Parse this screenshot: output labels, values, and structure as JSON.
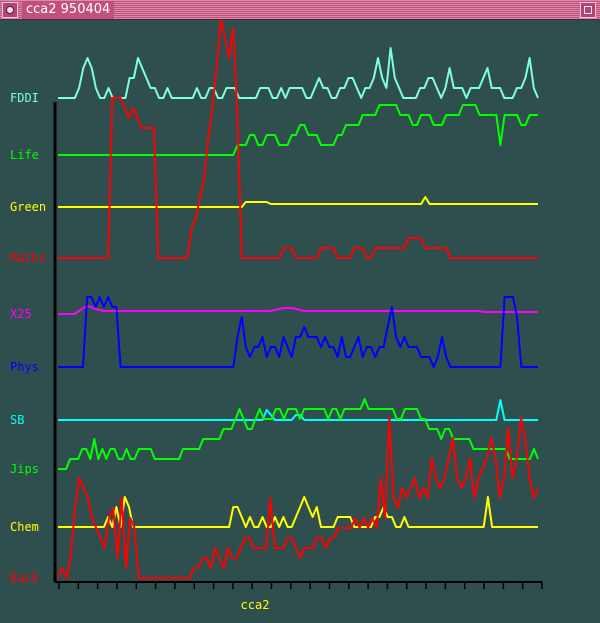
{
  "window": {
    "title": "cca2 950404",
    "menu_icon": "window-menu-icon",
    "maximize_icon": "maximize-icon"
  },
  "colors": {
    "background": "#2f4f4f",
    "axis": "#000000",
    "titlebar": "#c0507e"
  },
  "chart_data": {
    "type": "line",
    "xlabel": "cca2",
    "grid": false,
    "x_ticks": 26,
    "y_scale": "relative per series, unlabeled",
    "series": [
      {
        "name": "FDDI",
        "color": "#7fffd4",
        "values": [
          0,
          0,
          0,
          0,
          0,
          1,
          3,
          4,
          3,
          1,
          0,
          0,
          1,
          0,
          0,
          0,
          0,
          2,
          2,
          4,
          3,
          2,
          1,
          1,
          0,
          0,
          1,
          0,
          0,
          0,
          0,
          0,
          0,
          1,
          0,
          0,
          1,
          1,
          0,
          0,
          1,
          1,
          1,
          0,
          0,
          0,
          0,
          0,
          1,
          1,
          1,
          0,
          0,
          1,
          0,
          1,
          1,
          1,
          1,
          0,
          0,
          1,
          2,
          1,
          1,
          0,
          0,
          1,
          1,
          2,
          2,
          1,
          0,
          1,
          1,
          2,
          4,
          2,
          1,
          5,
          2,
          1,
          0,
          0,
          0,
          0,
          1,
          1,
          2,
          2,
          1,
          0,
          1,
          3,
          1,
          1,
          1,
          0,
          1,
          1,
          1,
          2,
          3,
          1,
          1,
          1,
          0,
          0,
          0,
          1,
          1,
          2,
          4,
          1,
          0
        ]
      },
      {
        "name": "Life",
        "color": "#00ff00",
        "values": [
          0,
          0,
          0,
          0,
          0,
          0,
          0,
          0,
          0,
          0,
          0,
          0,
          0,
          0,
          0,
          0,
          0,
          0,
          0,
          0,
          0,
          0,
          0,
          0,
          0,
          0,
          0,
          0,
          0,
          0,
          0,
          0,
          0,
          0,
          0,
          0,
          0,
          0,
          0,
          0,
          0,
          0,
          0,
          1,
          1,
          1,
          2,
          2,
          1,
          1,
          2,
          2,
          2,
          1,
          1,
          1,
          2,
          2,
          3,
          3,
          2,
          2,
          2,
          1,
          1,
          1,
          1,
          2,
          2,
          3,
          3,
          3,
          3,
          4,
          4,
          4,
          4,
          5,
          5,
          5,
          5,
          5,
          4,
          4,
          4,
          3,
          3,
          4,
          4,
          4,
          3,
          3,
          3,
          4,
          4,
          4,
          4,
          5,
          5,
          5,
          5,
          4,
          4,
          4,
          4,
          4,
          1,
          4,
          4,
          4,
          4,
          3,
          3,
          4,
          4,
          4
        ]
      },
      {
        "name": "Green",
        "color": "#ffff00",
        "values": [
          0,
          0,
          0,
          0,
          0,
          0,
          0,
          0,
          0,
          0,
          0,
          0,
          0,
          0,
          0,
          0,
          0,
          0,
          0,
          0,
          0,
          0,
          0,
          0,
          0,
          0,
          0,
          0,
          0,
          0,
          0,
          0,
          0,
          0,
          0,
          0,
          0,
          0,
          0,
          0,
          0,
          0,
          0,
          0,
          0,
          0.5,
          0.5,
          0.5,
          0.5,
          0.5,
          0.5,
          0.3,
          0.3,
          0.3,
          0.3,
          0.3,
          0.3,
          0.3,
          0.3,
          0.3,
          0.3,
          0.3,
          0.3,
          0.3,
          0.3,
          0.3,
          0.3,
          0.3,
          0.3,
          0.3,
          0.3,
          0.3,
          0.3,
          0.3,
          0.3,
          0.3,
          0.3,
          0.3,
          0.3,
          0.3,
          0.3,
          0.3,
          0.3,
          0.3,
          0.3,
          0.3,
          0.3,
          0.3,
          1,
          0.3,
          0.3,
          0.3,
          0.3,
          0.3,
          0.3,
          0.3,
          0.3,
          0.3,
          0.3,
          0.3,
          0.3,
          0.3,
          0.3,
          0.3,
          0.3,
          0.3,
          0.3,
          0.3,
          0.3,
          0.3,
          0.3,
          0.3,
          0.3,
          0.3,
          0.3,
          0.3
        ]
      },
      {
        "name": "Maths",
        "color": "#ff0000",
        "values": [
          0,
          0,
          0,
          0,
          0,
          0,
          0,
          0,
          0,
          0,
          0,
          0,
          0,
          16,
          16,
          16,
          15,
          14,
          15,
          14,
          13,
          13,
          13,
          13,
          0,
          0,
          0,
          0,
          0,
          0,
          0,
          0,
          3,
          4,
          6,
          8,
          12,
          15,
          19,
          24,
          22,
          20,
          23,
          14,
          0,
          0,
          0,
          0,
          0,
          0,
          0,
          0,
          0,
          0,
          1,
          1,
          1,
          0,
          0,
          0,
          0,
          0,
          0,
          1,
          1,
          1,
          1,
          0,
          0,
          0,
          0,
          1,
          1,
          1,
          0,
          0,
          1,
          1,
          1,
          1,
          1,
          1,
          1,
          1,
          2,
          2,
          2,
          2,
          1,
          1,
          1,
          1,
          1,
          1,
          0,
          0,
          0,
          0,
          0,
          0,
          0,
          0,
          0,
          0,
          0,
          0,
          0,
          0,
          0,
          0,
          0,
          0,
          0,
          0,
          0,
          0
        ]
      },
      {
        "name": "X25",
        "color": "#ff00ff",
        "values": [
          0,
          0,
          0,
          0,
          0,
          0.3,
          0.6,
          0.8,
          0.7,
          0.5,
          0.4,
          0.3,
          0.3,
          0.3,
          0.3,
          0.3,
          0.3,
          0.3,
          0.3,
          0.3,
          0.3,
          0.3,
          0.3,
          0.3,
          0.3,
          0.3,
          0.3,
          0.3,
          0.3,
          0.3,
          0.3,
          0.3,
          0.3,
          0.3,
          0.3,
          0.3,
          0.3,
          0.3,
          0.3,
          0.3,
          0.3,
          0.3,
          0.3,
          0.3,
          0.3,
          0.3,
          0.3,
          0.3,
          0.3,
          0.3,
          0.3,
          0.3,
          0.4,
          0.5,
          0.6,
          0.6,
          0.6,
          0.5,
          0.4,
          0.3,
          0.3,
          0.3,
          0.3,
          0.3,
          0.3,
          0.3,
          0.3,
          0.3,
          0.3,
          0.3,
          0.3,
          0.3,
          0.3,
          0.3,
          0.3,
          0.3,
          0.3,
          0.3,
          0.3,
          0.3,
          0.3,
          0.3,
          0.3,
          0.3,
          0.3,
          0.3,
          0.3,
          0.3,
          0.3,
          0.3,
          0.3,
          0.3,
          0.3,
          0.3,
          0.3,
          0.3,
          0.3,
          0.3,
          0.3,
          0.3,
          0.3,
          0.3,
          0.2,
          0.2,
          0.2,
          0.2,
          0.2,
          0.2,
          0.2,
          0.2,
          0.2,
          0.2,
          0.2,
          0.2,
          0.2,
          0.2
        ]
      },
      {
        "name": "Phys",
        "color": "#0000ff",
        "values": [
          0,
          0,
          0,
          0,
          0,
          0,
          0,
          7,
          7,
          6,
          7,
          6,
          7,
          6,
          6,
          0,
          0,
          0,
          0,
          0,
          0,
          0,
          0,
          0,
          0,
          0,
          0,
          0,
          0,
          0,
          0,
          0,
          0,
          0,
          0,
          0,
          0,
          0,
          0,
          0,
          0,
          0,
          0,
          3,
          5,
          2,
          1,
          2,
          2,
          3,
          1,
          2,
          2,
          1,
          3,
          2,
          1,
          3,
          3,
          4,
          3,
          3,
          3,
          2,
          3,
          2,
          2,
          1,
          3,
          1,
          1,
          2,
          3,
          1,
          2,
          2,
          1,
          2,
          2,
          4,
          6,
          3,
          2,
          3,
          2,
          2,
          2,
          1,
          1,
          1,
          0,
          1,
          3,
          1,
          0,
          0,
          0,
          0,
          0,
          0,
          0,
          0,
          0,
          0,
          0,
          0,
          0,
          7,
          7,
          7,
          5,
          0,
          0,
          0,
          0,
          0
        ]
      },
      {
        "name": "SB",
        "color": "#00ffff",
        "values": [
          0,
          0,
          0,
          0,
          0,
          0,
          0,
          0,
          0,
          0,
          0,
          0,
          0,
          0,
          0,
          0,
          0,
          0,
          0,
          0,
          0,
          0,
          0,
          0,
          0,
          0,
          0,
          0,
          0,
          0,
          0,
          0,
          0,
          0,
          0,
          0,
          0,
          0,
          0,
          0,
          0,
          0,
          0,
          0,
          0,
          0,
          0,
          0,
          0,
          0,
          1,
          0.5,
          0,
          0,
          0,
          0,
          0,
          0.5,
          0.5,
          0,
          0,
          0,
          0,
          0,
          0,
          0,
          0,
          0,
          0,
          0,
          0,
          0,
          0,
          0,
          0,
          0,
          0,
          0,
          0,
          0,
          0,
          0,
          0,
          0,
          0,
          0,
          0,
          0,
          0,
          0,
          0,
          0,
          0,
          0,
          0,
          0,
          0,
          0,
          0,
          0,
          0,
          0,
          0,
          0,
          0,
          0,
          2,
          0,
          0,
          0,
          0,
          0,
          0,
          0,
          0,
          0
        ]
      },
      {
        "name": "Jips",
        "color": "#00ff00",
        "values": [
          0,
          0,
          0,
          1,
          1,
          1,
          2,
          2,
          1,
          3,
          1,
          2,
          1,
          2,
          2,
          1,
          1,
          2,
          1,
          1,
          2,
          2,
          2,
          2,
          1,
          1,
          1,
          1,
          1,
          1,
          1,
          2,
          2,
          2,
          2,
          2,
          3,
          3,
          3,
          3,
          3,
          4,
          4,
          4,
          5,
          6,
          5,
          4,
          4,
          5,
          6,
          5,
          5,
          5,
          6,
          6,
          5,
          6,
          6,
          6,
          5,
          6,
          6,
          6,
          6,
          6,
          6,
          5,
          6,
          6,
          5,
          6,
          6,
          6,
          6,
          6,
          7,
          6,
          6,
          6,
          6,
          6,
          6,
          6,
          5,
          5,
          6,
          6,
          6,
          6,
          5,
          5,
          4,
          4,
          4,
          3,
          4,
          4,
          3,
          3,
          3,
          3,
          3,
          2,
          2,
          2,
          2,
          2,
          2,
          2,
          2,
          2,
          1,
          1,
          1,
          1,
          1,
          1,
          2,
          1
        ]
      },
      {
        "name": "Chem",
        "color": "#ffff00",
        "values": [
          0,
          0,
          0,
          0,
          0,
          0,
          0,
          0,
          0,
          0,
          0,
          0,
          1,
          0,
          2,
          0,
          3,
          2,
          0,
          0,
          0,
          0,
          0,
          0,
          0,
          0,
          0,
          0,
          0,
          0,
          0,
          0,
          0,
          0,
          0,
          0,
          0,
          0,
          0,
          0,
          0,
          0,
          2,
          2,
          1,
          0,
          1,
          0,
          0,
          1,
          0,
          0,
          1,
          0,
          1,
          0,
          0,
          1,
          2,
          3,
          2,
          1,
          2,
          0,
          0,
          0,
          0,
          1,
          1,
          1,
          1,
          0,
          0,
          0,
          0,
          0,
          1,
          1,
          2,
          1,
          1,
          0,
          0,
          1,
          0,
          0,
          0,
          0,
          0,
          0,
          0,
          0,
          0,
          0,
          0,
          0,
          0,
          0,
          0,
          0,
          0,
          0,
          0,
          3,
          0,
          0,
          0,
          0,
          0,
          0,
          0,
          0,
          0,
          0,
          0,
          0
        ]
      },
      {
        "name": "Back",
        "color": "#ff0000",
        "values": [
          0,
          1,
          0,
          2,
          7,
          10,
          9,
          8,
          6,
          5,
          4,
          3,
          6,
          7,
          2,
          8,
          1,
          6,
          5,
          0,
          0,
          0,
          0,
          0,
          0,
          0,
          0,
          0,
          0,
          0,
          0,
          0,
          1,
          1,
          2,
          2,
          1,
          3,
          2,
          1,
          3,
          2,
          2,
          3,
          4,
          4,
          3,
          3,
          3,
          3,
          8,
          3,
          3,
          3,
          4,
          4,
          3,
          2,
          3,
          3,
          3,
          4,
          4,
          3,
          4,
          4,
          5,
          5,
          5,
          5,
          6,
          5,
          6,
          5,
          6,
          5,
          10,
          6,
          16,
          8,
          7,
          9,
          8,
          9,
          10,
          8,
          9,
          8,
          12,
          10,
          9,
          10,
          12,
          14,
          10,
          9,
          10,
          12,
          8,
          10,
          11,
          12,
          14,
          12,
          8,
          10,
          15,
          10,
          12,
          16,
          14,
          10,
          8,
          9
        ]
      }
    ]
  }
}
